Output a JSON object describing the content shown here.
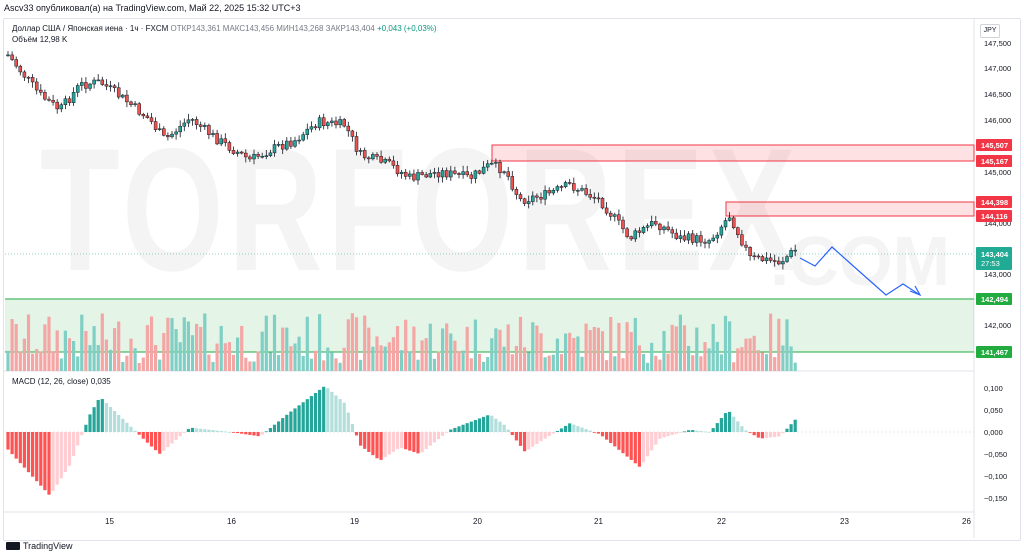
{
  "header": {
    "publisher_line": "Ascv33 опубликовал(а) на TradingView.com, Май 22, 2025 15:32 UTC+3"
  },
  "legend": {
    "instrument": "Доллар США / Японская иена · 1ч · FXCM",
    "open": "ОТКР143,361",
    "high": "МАКС143,456",
    "low": "МИН143,268",
    "close": "ЗАКР143,404",
    "change": "+0,043 (+0,03%)",
    "volume_label": "Объём",
    "volume_value": "12,98 K"
  },
  "currency_button": "JPY",
  "watermark": {
    "text": "TORFOREX",
    "suffix": ".COM"
  },
  "price_axis": {
    "ticks": [
      "147,500",
      "147,000",
      "146,500",
      "146,000",
      "145,500",
      "145,000",
      "144,500",
      "144,000",
      "143,500",
      "143,000",
      "142,500",
      "142,000",
      "141,500"
    ]
  },
  "price_markers": [
    {
      "label": "145,507",
      "type": "resistance",
      "color": "#f23645"
    },
    {
      "label": "145,167",
      "type": "resistance",
      "color": "#f23645"
    },
    {
      "label": "144,398",
      "type": "resistance",
      "color": "#f23645"
    },
    {
      "label": "144,116",
      "type": "resistance",
      "color": "#f23645"
    },
    {
      "label": "142,494",
      "type": "support",
      "color": "#22ab3f"
    },
    {
      "label": "141,467",
      "type": "support",
      "color": "#22ab3f"
    }
  ],
  "last_price": {
    "value": "143,404",
    "countdown": "27:53",
    "color": "#22ab94"
  },
  "time_axis": {
    "ticks": [
      "15",
      "16",
      "19",
      "20",
      "21",
      "22",
      "23",
      "26"
    ]
  },
  "macd": {
    "label": "MACD (12, 26, close)",
    "value": "0,035",
    "axis_ticks": [
      "0,100",
      "0,050",
      "0,000",
      "−0,050",
      "−0,100",
      "−0,150"
    ]
  },
  "footer": {
    "brand": "TradingView"
  },
  "colors": {
    "up": "#26a69a",
    "down": "#ef5350",
    "resistance_zone": "#f23645",
    "support_zone": "#22ab3f",
    "forecast_arrow": "#2962ff"
  }
}
